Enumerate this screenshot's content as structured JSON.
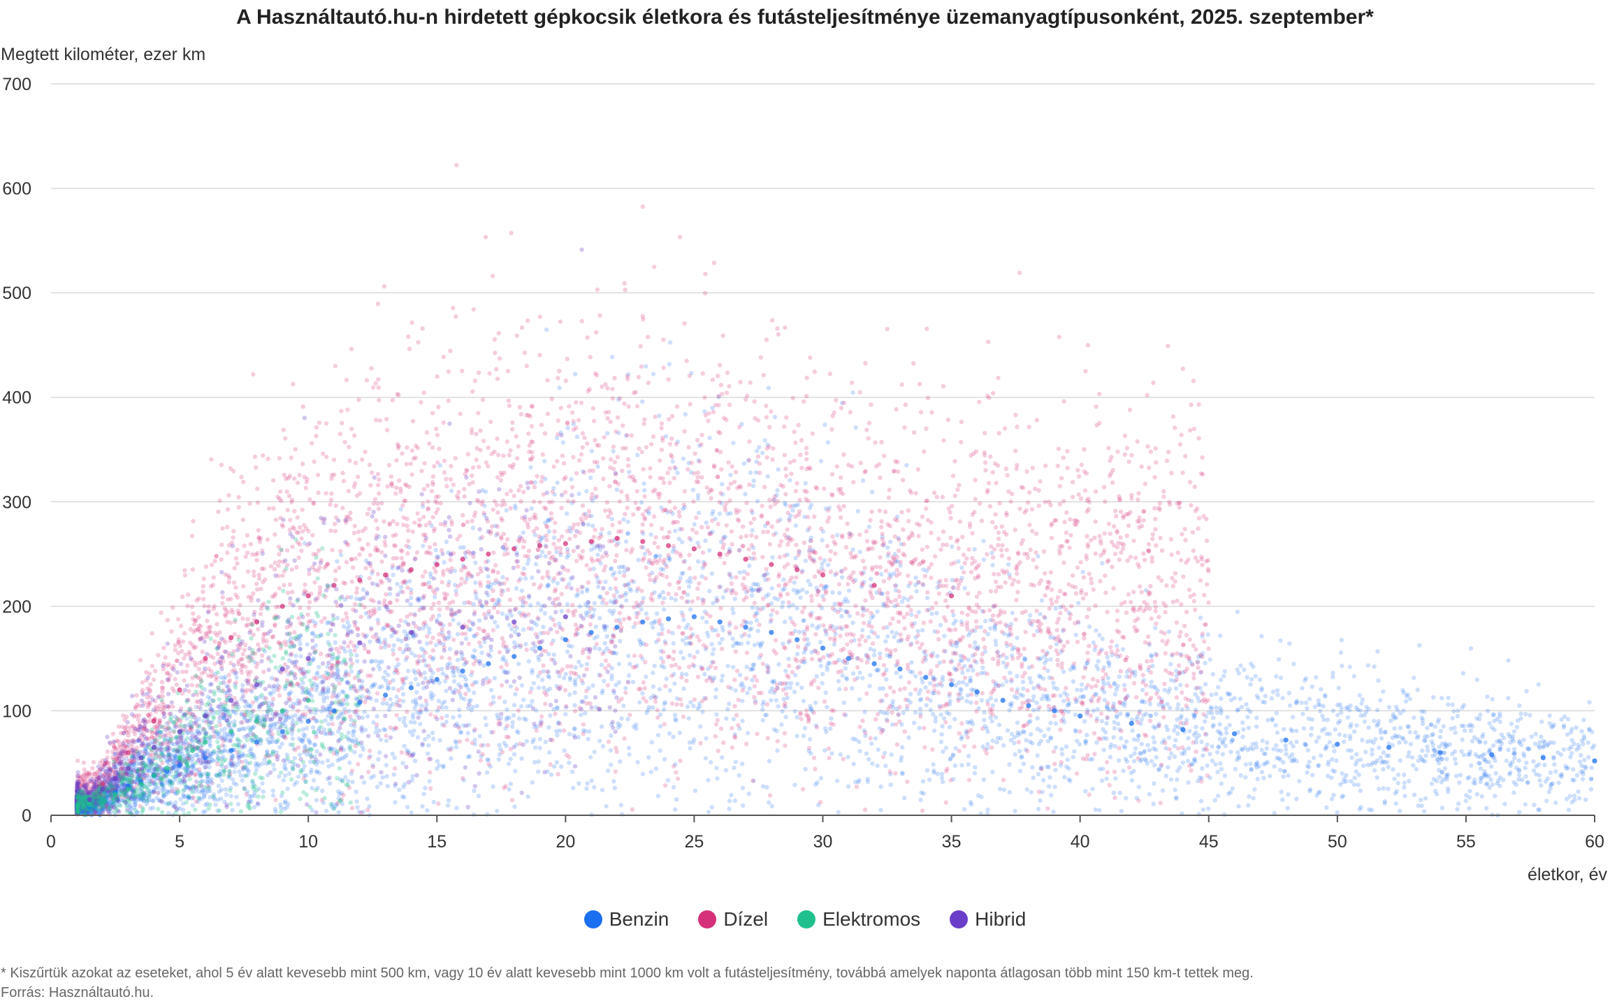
{
  "chart_data": {
    "type": "scatter",
    "title": "A Használtautó.hu-n hirdetett gépkocsik életkora és futásteljesítménye üzemanyagtípusonként, 2025. szeptember*",
    "xlabel": "életkor, év",
    "ylabel": "Megtett kilométer, ezer km",
    "xlim": [
      0,
      60
    ],
    "ylim": [
      0,
      700
    ],
    "x_ticks": [
      "0",
      "5",
      "10",
      "15",
      "20",
      "25",
      "30",
      "35",
      "40",
      "45",
      "50",
      "55",
      "60"
    ],
    "y_ticks": [
      "0",
      "100",
      "200",
      "300",
      "400",
      "500",
      "600",
      "700"
    ],
    "grid": "horizontal",
    "legend_position": "bottom-center",
    "series": [
      {
        "name": "Benzin",
        "color": "#1a6ff0",
        "x": [
          1.5,
          2,
          2.5,
          3,
          3.5,
          4,
          4.5,
          5,
          6,
          7,
          8,
          9,
          10,
          11,
          12,
          13,
          14,
          15,
          16,
          17,
          18,
          19,
          20,
          21,
          22,
          23,
          24,
          25,
          26,
          27,
          28,
          29,
          30,
          31,
          32,
          33,
          34,
          35,
          36,
          37,
          38,
          39,
          40,
          42,
          44,
          46,
          48,
          50,
          52,
          54,
          56,
          58,
          60
        ],
        "y": [
          8,
          15,
          22,
          28,
          32,
          38,
          42,
          48,
          55,
          62,
          70,
          80,
          90,
          100,
          108,
          115,
          122,
          130,
          138,
          145,
          152,
          160,
          168,
          175,
          180,
          185,
          188,
          190,
          185,
          180,
          175,
          168,
          160,
          150,
          145,
          140,
          132,
          125,
          118,
          110,
          105,
          100,
          95,
          88,
          82,
          78,
          72,
          68,
          65,
          60,
          58,
          55,
          52
        ]
      },
      {
        "name": "Dízel",
        "color": "#d6307a",
        "x": [
          2,
          3,
          4,
          5,
          6,
          7,
          8,
          9,
          10,
          11,
          12,
          13,
          14,
          15,
          16,
          17,
          18,
          19,
          20,
          21,
          22,
          23,
          24,
          25,
          26,
          27,
          28,
          29,
          30,
          32,
          35
        ],
        "y": [
          30,
          60,
          90,
          120,
          150,
          170,
          185,
          200,
          210,
          220,
          225,
          230,
          235,
          240,
          245,
          250,
          255,
          258,
          260,
          262,
          265,
          262,
          258,
          255,
          250,
          245,
          240,
          235,
          230,
          220,
          210
        ]
      },
      {
        "name": "Elektromos",
        "color": "#1fc08e",
        "x": [
          1.5,
          2,
          2.5,
          3,
          3.5,
          4,
          4.5,
          5,
          5.5,
          6,
          7,
          8,
          9,
          10
        ],
        "y": [
          10,
          15,
          20,
          25,
          30,
          38,
          45,
          55,
          62,
          70,
          80,
          90,
          100,
          110
        ]
      },
      {
        "name": "Hibrid",
        "color": "#6a3ec8",
        "x": [
          1.5,
          2,
          2.5,
          3,
          3.5,
          4,
          5,
          6,
          7,
          8,
          9,
          10,
          12,
          14,
          16,
          18,
          20
        ],
        "y": [
          15,
          25,
          35,
          45,
          55,
          65,
          80,
          95,
          110,
          125,
          140,
          150,
          165,
          175,
          180,
          185,
          190
        ]
      }
    ],
    "footnote": "* Kiszűrtük azokat az eseteket, ahol 5 év alatt kevesebb mint 500 km, vagy 10 év alatt kevesebb mint 1000 km volt a futásteljesítmény, továbbá amelyek naponta átlagosan több mint 150 km-t tettek meg.",
    "source": "Forrás: Használtautó.hu."
  }
}
